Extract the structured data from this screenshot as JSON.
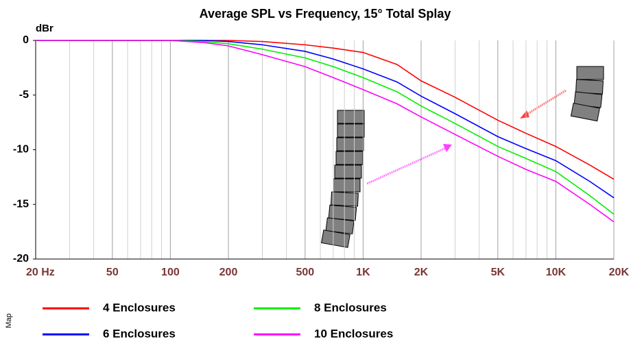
{
  "chart_data": {
    "type": "line",
    "title": "Average SPL vs Frequency, 15° Total Splay",
    "y_label": "dBr",
    "side_text": "Map",
    "x": [
      20,
      100,
      150,
      200,
      300,
      500,
      700,
      1000,
      1500,
      2000,
      3000,
      5000,
      7000,
      10000,
      15000,
      20000
    ],
    "series": [
      {
        "name": "4 Enclosures",
        "color": "#ff0000",
        "values": [
          0,
          0,
          0,
          0,
          -0.1,
          -0.4,
          -0.7,
          -1.1,
          -2.2,
          -3.7,
          -5.2,
          -7.3,
          -8.5,
          -9.7,
          -11.4,
          -12.7
        ]
      },
      {
        "name": "6 Enclosures",
        "color": "#0000ff",
        "values": [
          0,
          0,
          0,
          -0.1,
          -0.4,
          -1.0,
          -1.7,
          -2.6,
          -3.8,
          -5.1,
          -6.7,
          -8.8,
          -9.9,
          -11.0,
          -12.9,
          -14.4
        ]
      },
      {
        "name": "8 Enclosures",
        "color": "#00ee00",
        "values": [
          0,
          0,
          -0.1,
          -0.3,
          -0.8,
          -1.6,
          -2.4,
          -3.4,
          -4.7,
          -6.0,
          -7.6,
          -9.7,
          -10.8,
          -12.0,
          -14.2,
          -15.9
        ]
      },
      {
        "name": "10 Enclosures",
        "color": "#ff00ff",
        "values": [
          0,
          0,
          -0.2,
          -0.5,
          -1.3,
          -2.4,
          -3.4,
          -4.5,
          -5.8,
          -7.0,
          -8.6,
          -10.6,
          -11.8,
          -12.9,
          -15.0,
          -16.6
        ]
      }
    ],
    "x_log": true,
    "xlim": [
      20,
      20000
    ],
    "xticks": [
      {
        "value": 20,
        "label": "20 Hz"
      },
      50,
      100,
      200,
      500,
      {
        "value": 1000,
        "label": "1K"
      },
      {
        "value": 2000,
        "label": "2K"
      },
      {
        "value": 5000,
        "label": "5K"
      },
      {
        "value": 10000,
        "label": "10K"
      },
      {
        "value": 20000,
        "label": "20K"
      }
    ],
    "x_minor_ticks": [
      30,
      40,
      60,
      70,
      80,
      90,
      300,
      400,
      600,
      700,
      800,
      900,
      3000,
      4000,
      6000,
      7000,
      8000,
      9000
    ],
    "ylim": [
      -20,
      0
    ],
    "yticks": [
      -20,
      -15,
      -10,
      -5,
      0
    ],
    "grid": true
  }
}
